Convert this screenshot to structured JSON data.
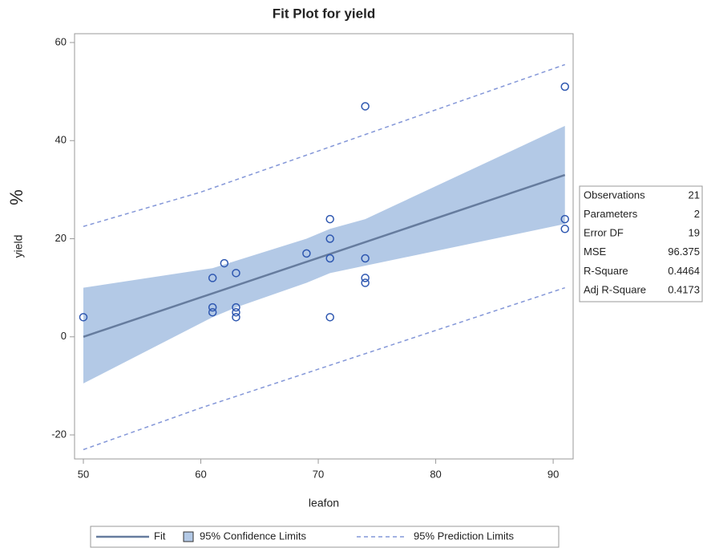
{
  "chart_data": {
    "type": "scatter",
    "title": "Fit Plot for yield",
    "x_label": "leafon",
    "y_label": "yield",
    "annotation": "%",
    "x": [
      50,
      61,
      61,
      61,
      62,
      63,
      63,
      63,
      63,
      69,
      71,
      71,
      71,
      71,
      74,
      74,
      74,
      74,
      91,
      91,
      91
    ],
    "values": [
      4,
      12,
      6,
      5,
      15,
      13,
      6,
      5,
      4,
      17,
      24,
      20,
      16,
      4,
      47,
      16,
      12,
      11,
      51,
      24,
      22
    ],
    "point_color": "#2e57b0",
    "fit": {
      "name": "Fit",
      "color": "#667c9e",
      "x": [
        50,
        91
      ],
      "values": [
        0,
        33
      ]
    },
    "confidence": {
      "name": "95% Confidence Limits",
      "color": "#b3c9e6",
      "x": [
        50,
        61,
        63,
        69,
        71,
        74,
        91
      ],
      "upper": [
        10,
        14,
        15.5,
        20,
        22,
        24,
        43
      ],
      "lower": [
        -9.5,
        4,
        6,
        11,
        13,
        14.5,
        23
      ]
    },
    "prediction": {
      "name": "95% Prediction Limits",
      "color": "#8497d8",
      "x": [
        50,
        60,
        91
      ],
      "upper": [
        22.5,
        29.5,
        55.5
      ],
      "lower": [
        -23,
        -14.5,
        10
      ]
    },
    "xlim": [
      49.25,
      91.7
    ],
    "ylim": [
      -24.9,
      61.8
    ],
    "xticks": [
      50,
      60,
      70,
      80,
      90
    ],
    "yticks": [
      -20,
      0,
      20,
      40,
      60
    ],
    "grid": false,
    "stats": [
      {
        "label": "Observations",
        "value": 21
      },
      {
        "label": "Parameters",
        "value": 2
      },
      {
        "label": "Error DF",
        "value": 19
      },
      {
        "label": "MSE",
        "value": 96.375
      },
      {
        "label": "R-Square",
        "value": 0.4464
      },
      {
        "label": "Adj R-Square",
        "value": 0.4173
      }
    ]
  }
}
